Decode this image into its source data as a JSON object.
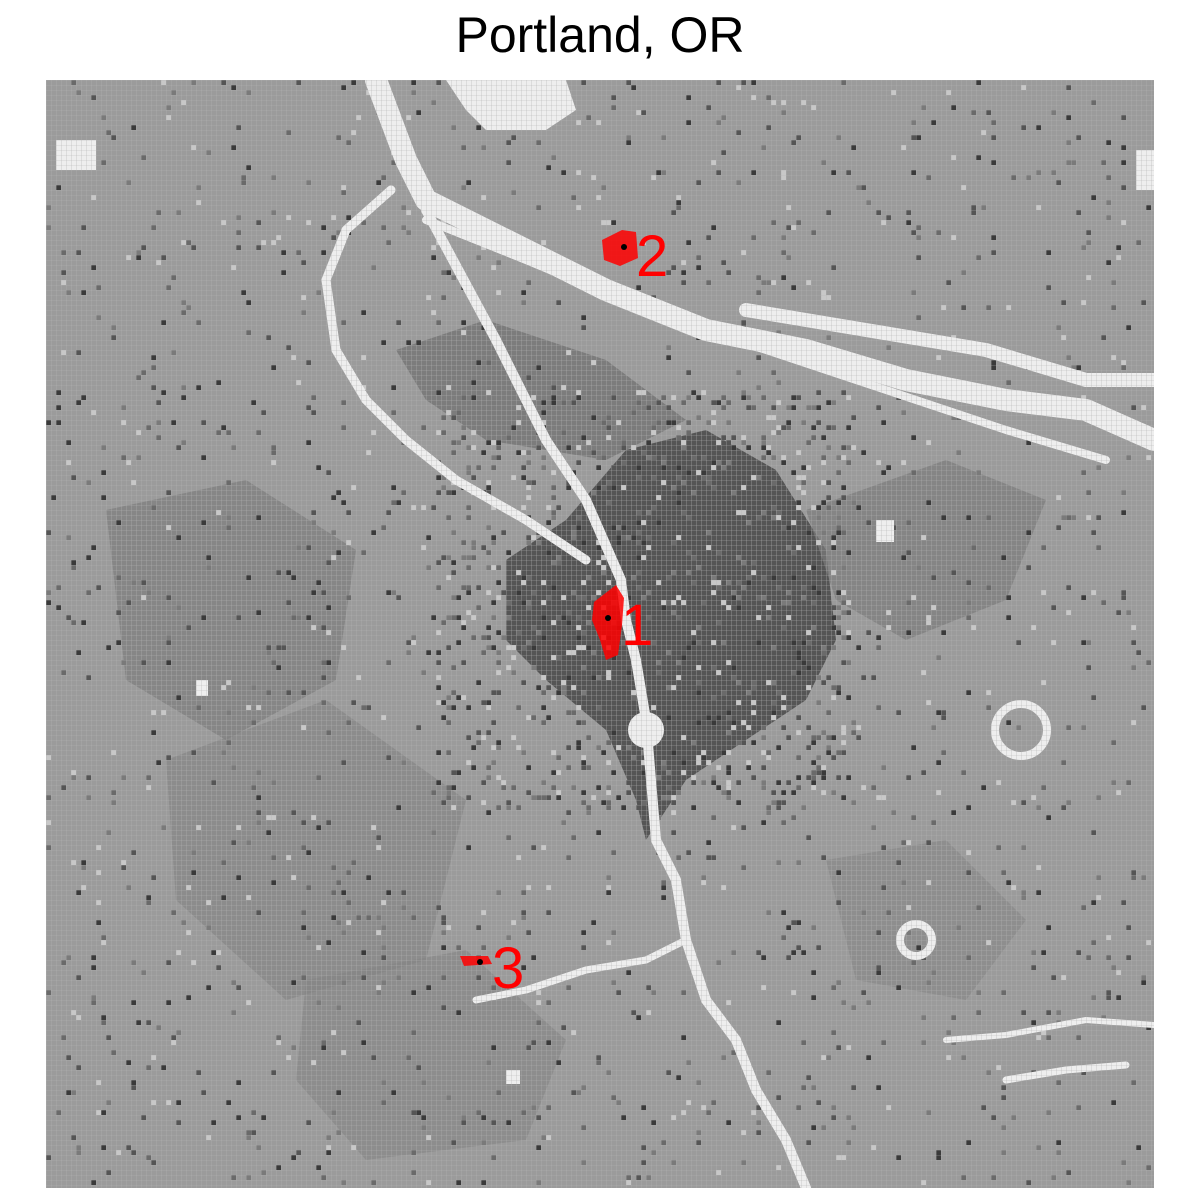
{
  "title": "Portland, OR",
  "map": {
    "colors": {
      "background": "#9b9b9b",
      "water": "#eeeeee",
      "urban_dark": "#4a4a4a",
      "urban_mid": "#6e6e6e",
      "marker": "#ff0000",
      "center_dot": "#000000"
    },
    "markers": [
      {
        "label": "1"
      },
      {
        "label": "2"
      },
      {
        "label": "3"
      }
    ]
  }
}
